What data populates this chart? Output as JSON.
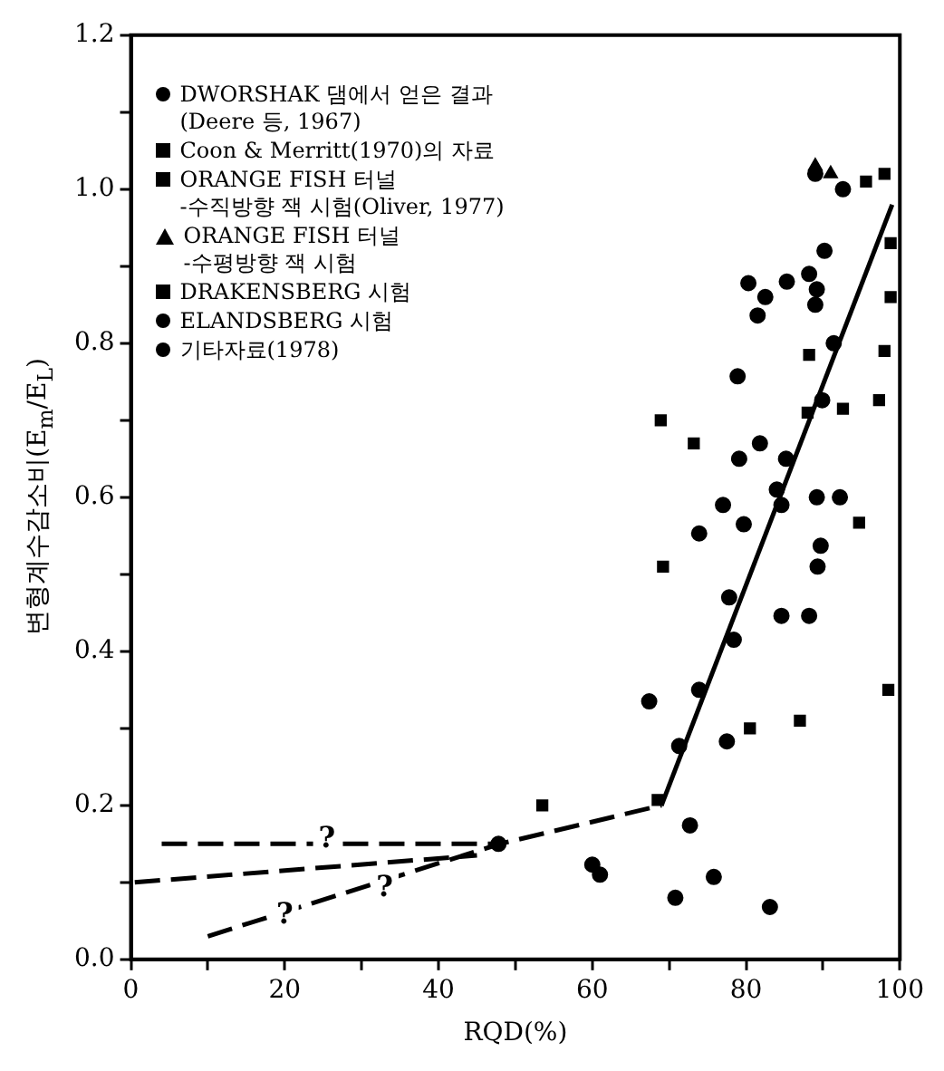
{
  "chart_data": {
    "type": "scatter",
    "xlabel": "RQD(%)",
    "ylabel": "변형계수감소비(E$_{m}$/E$_{L}$)",
    "xlim": [
      0,
      100
    ],
    "ylim": [
      0,
      1.2
    ],
    "xticks": [
      0,
      {
        "value": 10,
        "label": null
      },
      20,
      {
        "value": 30,
        "label": null
      },
      40,
      {
        "value": 50,
        "label": null
      },
      60,
      {
        "value": 70,
        "label": null
      },
      80,
      {
        "value": 90,
        "label": null
      },
      100
    ],
    "yticks": [
      {
        "value": 0,
        "label": "0.0"
      },
      {
        "value": 0.1,
        "label": null
      },
      {
        "value": 0.2,
        "label": "0.2"
      },
      {
        "value": 0.3,
        "label": null
      },
      {
        "value": 0.4,
        "label": "0.4"
      },
      {
        "value": 0.5,
        "label": null
      },
      {
        "value": 0.6,
        "label": "0.6"
      },
      {
        "value": 0.7,
        "label": null
      },
      {
        "value": 0.8,
        "label": "0.8"
      },
      {
        "value": 0.9,
        "label": null
      },
      {
        "value": 1.0,
        "label": "1.0"
      },
      {
        "value": 1.1,
        "label": null
      },
      {
        "value": 1.2,
        "label": "1.2"
      }
    ],
    "legend": "top left",
    "series": [
      {
        "name": "DWORSHAK 댐에서 얻은 결과\n(Deere 등, 1967)",
        "color": "#000000",
        "marker": "circle",
        "x": [
          91.4,
          92.2,
          90.2
        ],
        "values": [
          0.8,
          0.6,
          0.92
        ]
      },
      {
        "name": "Coon & Merritt(1970)의 자료",
        "color": "#000000",
        "marker": "square",
        "x": [
          53.5,
          80.5,
          87,
          69.2,
          68.9
        ],
        "values": [
          0.2,
          0.3,
          0.31,
          0.51,
          0.7
        ]
      },
      {
        "name": "ORANGE FISH 터널\n-수직방향 잭 시험(Oliver, 1977)",
        "color": "#000000",
        "marker": "square",
        "x": [
          68.5,
          73.2,
          88.2,
          92.6,
          94.7,
          98.5,
          97.3,
          98,
          98.8,
          98.8
        ],
        "values": [
          0.207,
          0.67,
          0.785,
          0.715,
          0.567,
          0.35,
          0.726,
          0.79,
          0.86,
          0.93
        ]
      },
      {
        "name": "ORANGE FISH 터널\n-수평방향 잭 시험",
        "color": "#000000",
        "marker": "triangle",
        "x": [
          89,
          91
        ],
        "values": [
          1.03,
          1.02
        ]
      },
      {
        "name": "DRAKENSBERG 시험",
        "color": "#000000",
        "marker": "square",
        "x": [
          95.6,
          98,
          88
        ],
        "values": [
          1.01,
          1.02,
          0.71
        ]
      },
      {
        "name": "ELANDSBERG 시험",
        "color": "#000000",
        "marker": "circle",
        "x": [
          80.3,
          82.5,
          85.3,
          89.2,
          89,
          81.5,
          78.9,
          89.9,
          79.1,
          81.8,
          85.2,
          84,
          84.6,
          89.2,
          77,
          79.7,
          73.9,
          89.7,
          89.3,
          77.8,
          84.6,
          88.2,
          78.4,
          67.4,
          71.3,
          73.9,
          72.7,
          75.8,
          70.8,
          83.1,
          60,
          61,
          77.5,
          89,
          88.2
        ],
        "values": [
          0.878,
          0.86,
          0.88,
          0.87,
          0.85,
          0.836,
          0.757,
          0.726,
          0.65,
          0.67,
          0.65,
          0.61,
          0.59,
          0.6,
          0.59,
          0.565,
          0.553,
          0.537,
          0.51,
          0.47,
          0.446,
          0.446,
          0.415,
          0.335,
          0.277,
          0.35,
          0.174,
          0.107,
          0.08,
          0.068,
          0.123,
          0.11,
          0.283,
          1.02,
          0.89
        ]
      },
      {
        "name": "기타자료(1978)",
        "color": "#000000",
        "marker": "circle",
        "x": [
          47.8,
          92.6
        ],
        "values": [
          0.15,
          1.0
        ]
      },
      {
        "color": "#000000",
        "type": "line",
        "line_style": "dashed",
        "x": [
          4,
          48
        ],
        "values": [
          0.15,
          0.15
        ]
      },
      {
        "color": "#000000",
        "type": "line",
        "line_style": "dashed",
        "x": [
          0.5,
          45
        ],
        "values": [
          0.1,
          0.135
        ]
      },
      {
        "color": "#000000",
        "type": "line",
        "line_style": "dashed",
        "x": [
          10,
          48,
          69
        ],
        "values": [
          0.03,
          0.15,
          0.2
        ]
      },
      {
        "color": "#000000",
        "type": "line",
        "line_style": "solid",
        "x": [
          69,
          99
        ],
        "values": [
          0.2,
          0.98
        ]
      }
    ],
    "annotations": [
      {
        "text": "?",
        "x": 25.5,
        "y": 0.155
      },
      {
        "text": "?",
        "x": 20,
        "y": 0.057
      },
      {
        "text": "?",
        "x": 33,
        "y": 0.092
      }
    ]
  }
}
